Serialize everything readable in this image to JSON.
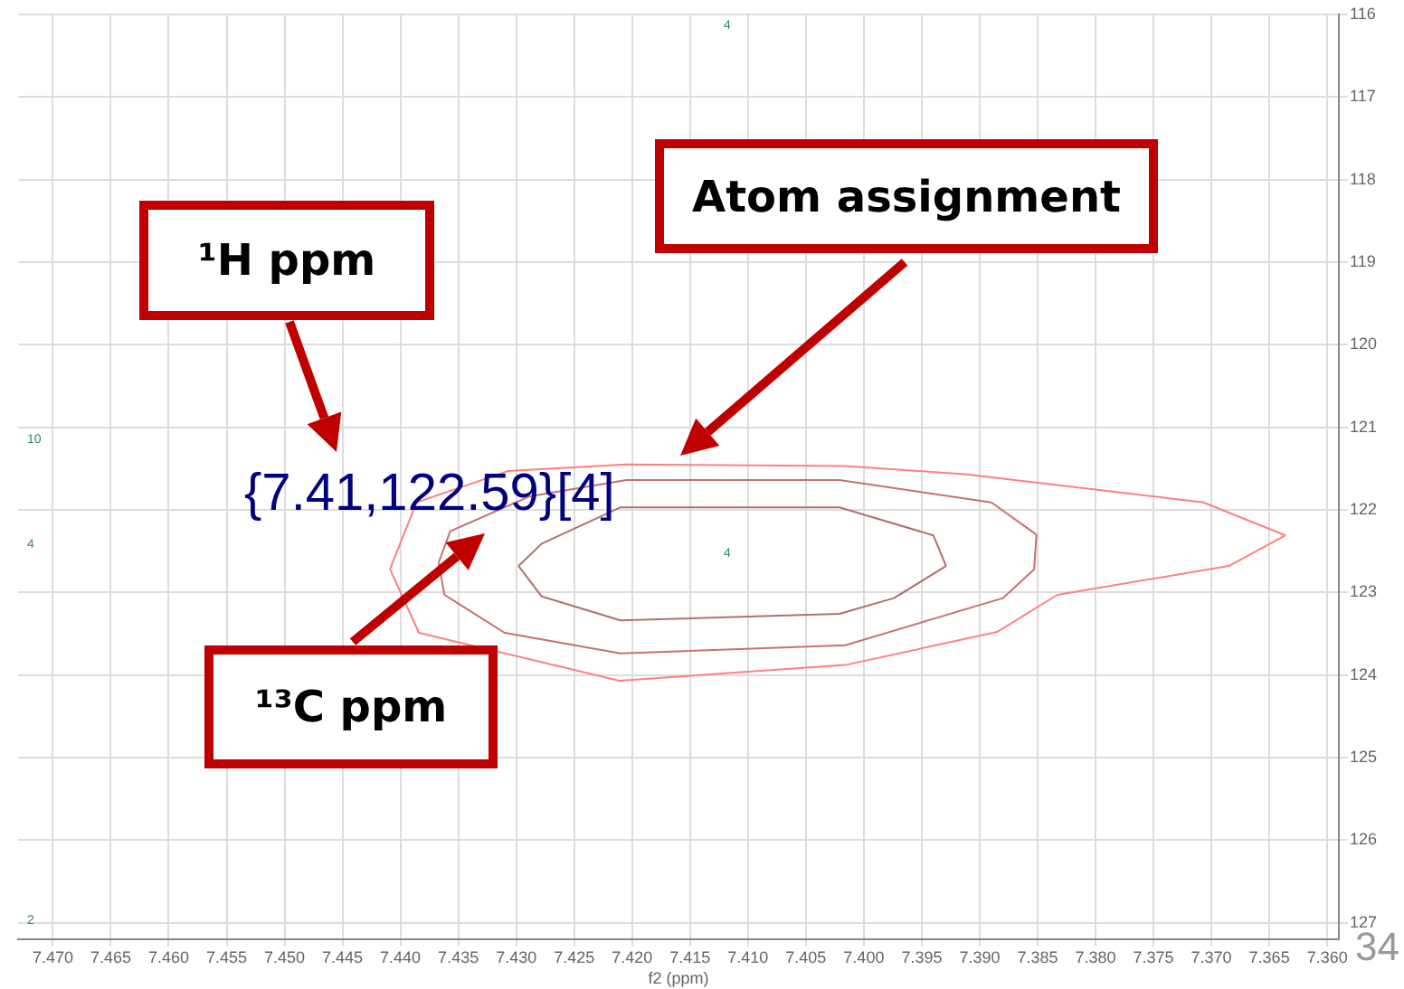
{
  "chart_data": {
    "type": "line",
    "xlabel": "f2 (ppm)",
    "xlim": [
      7.473,
      7.359
    ],
    "ylim": [
      127.2,
      116
    ],
    "xticks": [
      {
        "value": 7.47,
        "label": "7.470"
      },
      {
        "value": 7.465,
        "label": "7.465"
      },
      {
        "value": 7.46,
        "label": "7.460"
      },
      {
        "value": 7.455,
        "label": "7.455"
      },
      {
        "value": 7.45,
        "label": "7.450"
      },
      {
        "value": 7.445,
        "label": "7.445"
      },
      {
        "value": 7.44,
        "label": "7.440"
      },
      {
        "value": 7.435,
        "label": "7.435"
      },
      {
        "value": 7.43,
        "label": "7.430"
      },
      {
        "value": 7.425,
        "label": "7.425"
      },
      {
        "value": 7.42,
        "label": "7.420"
      },
      {
        "value": 7.415,
        "label": "7.415"
      },
      {
        "value": 7.41,
        "label": "7.410"
      },
      {
        "value": 7.405,
        "label": "7.405"
      },
      {
        "value": 7.4,
        "label": "7.400"
      },
      {
        "value": 7.395,
        "label": "7.395"
      },
      {
        "value": 7.39,
        "label": "7.390"
      },
      {
        "value": 7.385,
        "label": "7.385"
      },
      {
        "value": 7.38,
        "label": "7.380"
      },
      {
        "value": 7.375,
        "label": "7.375"
      },
      {
        "value": 7.37,
        "label": "7.370"
      },
      {
        "value": 7.365,
        "label": "7.365"
      },
      {
        "value": 7.36,
        "label": "7.360"
      }
    ],
    "yticks": [
      116,
      117,
      118,
      119,
      120,
      121,
      122,
      123,
      124,
      125,
      126,
      127
    ],
    "grid": true,
    "marker": "none",
    "line_style": "solid",
    "series": [
      {
        "color": "#ff8080",
        "x": [
          7.4409,
          7.4386,
          7.4307,
          7.4205,
          7.4016,
          7.3911,
          7.3707,
          7.3636
        ],
        "values": [
          122.72,
          121.91,
          121.53,
          121.45,
          121.47,
          121.57,
          121.91,
          122.31
        ]
      },
      {
        "color": "#ff8080",
        "x": [
          7.4409,
          7.4384,
          7.4211,
          7.4016,
          7.3885,
          7.3833,
          7.3685,
          7.3636
        ],
        "values": [
          122.72,
          123.49,
          124.07,
          123.88,
          123.48,
          123.03,
          122.68,
          122.31
        ]
      },
      {
        "color": "#c87070",
        "x": [
          7.4367,
          7.4357,
          7.4289,
          7.4205,
          7.4021,
          7.389,
          7.3851
        ],
        "values": [
          122.64,
          122.26,
          121.84,
          121.64,
          121.64,
          121.91,
          122.3
        ]
      },
      {
        "color": "#c87070",
        "x": [
          7.4367,
          7.4362,
          7.431,
          7.421,
          7.4016,
          7.388,
          7.3853,
          7.3851
        ],
        "values": [
          122.64,
          123.03,
          123.49,
          123.74,
          123.64,
          123.07,
          122.72,
          122.3
        ]
      },
      {
        "color": "#b07070",
        "x": [
          7.4298,
          7.4278,
          7.421,
          7.4021,
          7.394,
          7.3929
        ],
        "values": [
          122.68,
          122.41,
          121.97,
          121.97,
          122.31,
          122.68
        ]
      },
      {
        "color": "#b07070",
        "x": [
          7.4298,
          7.4278,
          7.421,
          7.4021,
          7.3974,
          7.3929
        ],
        "values": [
          122.68,
          123.05,
          123.34,
          123.26,
          123.07,
          122.68
        ]
      }
    ],
    "annotations": [
      "{7.41,122.59}[4]",
      "4",
      "4",
      "10",
      "4",
      "2",
      "¹H ppm",
      "Atom assignment",
      "¹³C ppm",
      "34"
    ]
  }
}
